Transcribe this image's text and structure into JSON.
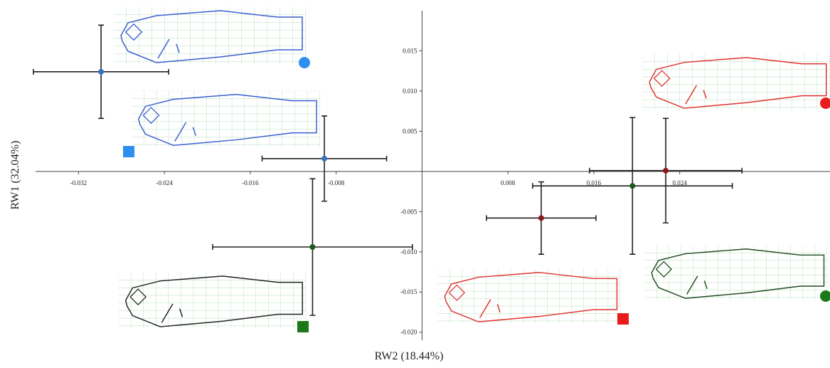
{
  "chart_data": {
    "type": "scatter",
    "x_label": "RW2 (18.44%)",
    "y_label": "RW1 (32.04%)",
    "xlim": [
      -0.036,
      0.038
    ],
    "ylim": [
      -0.021,
      0.02
    ],
    "xticks": [
      -0.032,
      -0.024,
      -0.016,
      -0.008,
      0.008,
      0.016,
      0.024
    ],
    "yticks": [
      0.015,
      {
        "value": 0.01,
        "label": "0.010"
      },
      0.005,
      -0.005,
      {
        "value": -0.01,
        "label": "-0.010"
      },
      -0.015,
      {
        "value": -0.02,
        "label": "-0.020"
      }
    ],
    "points": [
      {
        "x": -0.0299,
        "y": 0.0124,
        "xerr": 0.0063,
        "yerr": 0.0058,
        "color": "#3a6fc4"
      },
      {
        "x": -0.0091,
        "y": 0.0016,
        "xerr": 0.0058,
        "yerr": 0.0053,
        "color": "#3a6fc4"
      },
      {
        "x": -0.0102,
        "y": -0.0094,
        "xerr": 0.0093,
        "yerr": 0.0085,
        "color": "#1e5a1e"
      },
      {
        "x": 0.0111,
        "y": -0.0058,
        "xerr": 0.0051,
        "yerr": 0.0045,
        "color": "#8b1a1a"
      },
      {
        "x": 0.0196,
        "y": -0.0018,
        "xerr": 0.0093,
        "yerr": 0.0085,
        "color": "#1e5a1e"
      },
      {
        "x": 0.0227,
        "y": 0.0001,
        "xerr": 0.0071,
        "yerr": 0.0065,
        "color": "#8b1a1a"
      }
    ]
  }
}
